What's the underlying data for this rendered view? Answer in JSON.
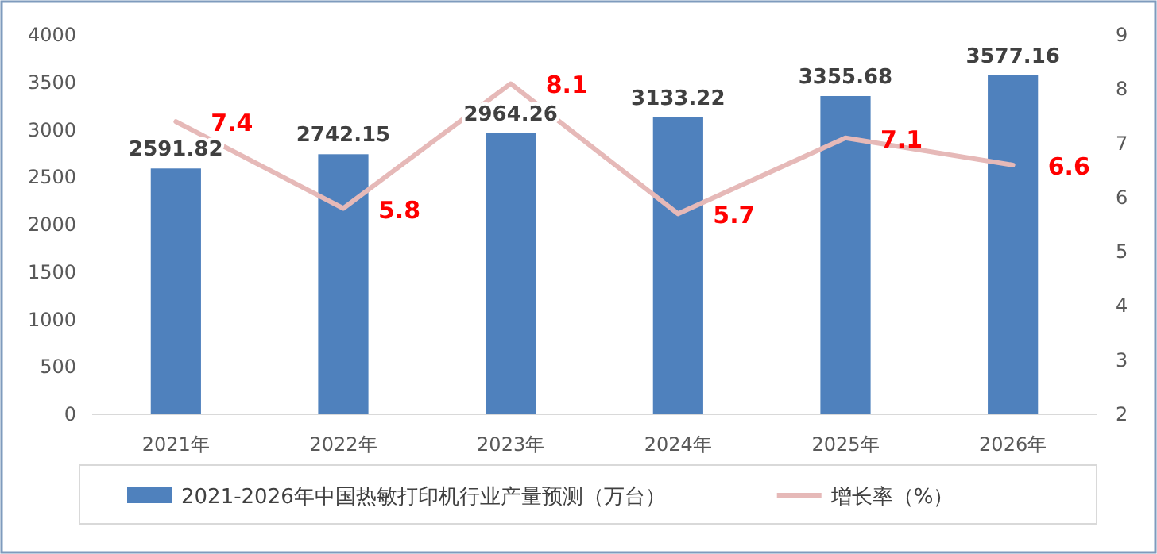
{
  "chart_data": {
    "type": "bar",
    "categories": [
      "2021年",
      "2022年",
      "2023年",
      "2024年",
      "2025年",
      "2026年"
    ],
    "series": [
      {
        "name": "2021-2026年中国热敏打印机行业产量预测（万台）",
        "color": "#4f81bd",
        "values": [
          2591.82,
          2742.15,
          2964.26,
          3133.22,
          3355.68,
          3577.16
        ]
      },
      {
        "name": "增长率（%）",
        "type": "line",
        "axis": "y2",
        "color": "#e6b9b8",
        "values": [
          7.4,
          5.8,
          8.1,
          5.7,
          7.1,
          6.6
        ]
      }
    ],
    "ylim": [
      0,
      4000
    ],
    "yticks": [
      0,
      500,
      1000,
      1500,
      2000,
      2500,
      3000,
      3500,
      4000
    ],
    "y2lim": [
      2,
      9
    ],
    "y2ticks": [
      2,
      3,
      4,
      5,
      6,
      7,
      8,
      9
    ],
    "data_labels": true,
    "legend": "bottom",
    "marker": "none",
    "line_style": "solid"
  }
}
